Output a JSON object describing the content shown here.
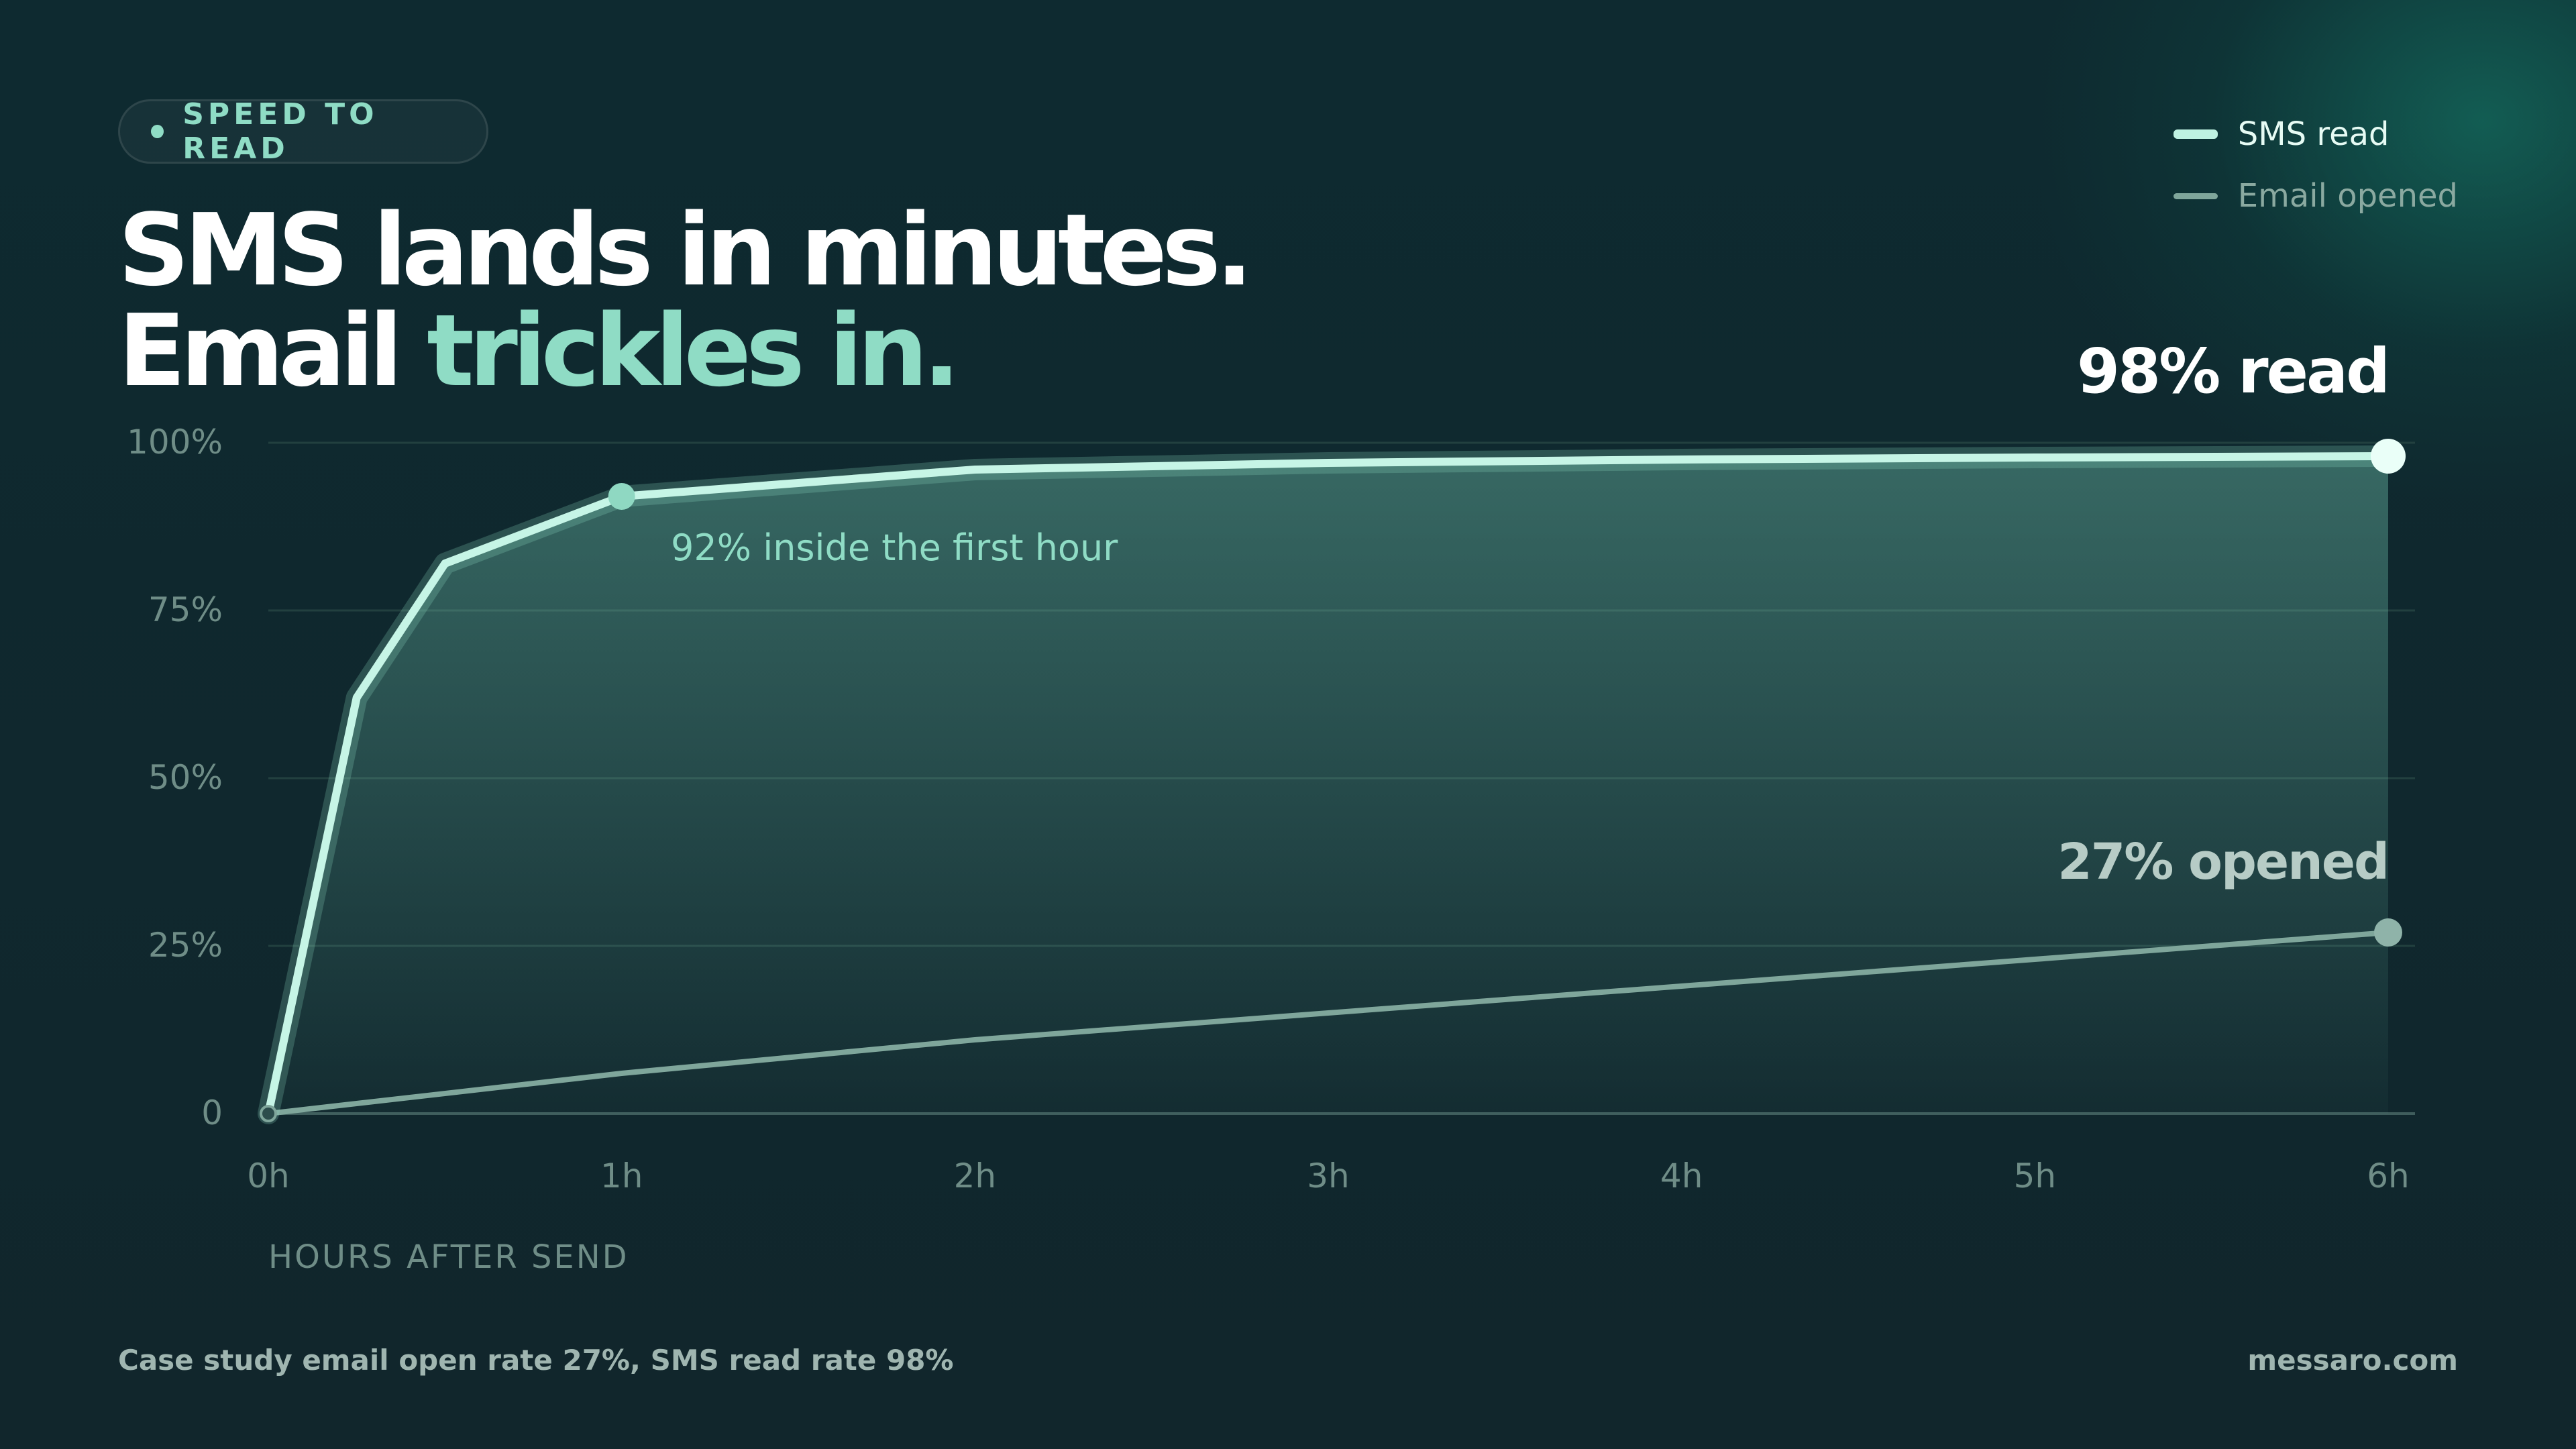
{
  "tag": {
    "label": "SPEED TO READ"
  },
  "headline": {
    "line1": "SMS lands in minutes.",
    "line2_plain": "Email ",
    "line2_accent": "trickles in."
  },
  "legend": {
    "sms_label": "SMS read",
    "email_label": "Email opened"
  },
  "footer": {
    "source": "Case study email open rate 27%, SMS read rate 98%",
    "brand": "messaro.com"
  },
  "colors": {
    "background": "#0f2a30",
    "accent": "#8fdcc5",
    "sms_line": "#c6f5e6",
    "email_line": "#7fa69b"
  },
  "chart_data": {
    "type": "line",
    "xlabel": "HOURS AFTER SEND",
    "ylabel": "",
    "xlim": [
      0,
      6
    ],
    "ylim": [
      0,
      100
    ],
    "x_ticks": [
      0,
      1,
      2,
      3,
      4,
      5,
      6
    ],
    "x_tick_labels": [
      "0h",
      "1h",
      "2h",
      "3h",
      "4h",
      "5h",
      "6h"
    ],
    "y_ticks": [
      0,
      25,
      50,
      75,
      100
    ],
    "y_tick_labels": [
      "0",
      "25%",
      "50%",
      "75%",
      "100%"
    ],
    "grid": true,
    "legend_position": "top-right",
    "series": [
      {
        "name": "SMS read",
        "x": [
          0,
          0.25,
          0.5,
          1,
          2,
          3,
          4,
          5,
          6
        ],
        "y": [
          0,
          62,
          82,
          92,
          96,
          97,
          97.5,
          97.8,
          98
        ],
        "area_fill": true
      },
      {
        "name": "Email opened",
        "x": [
          0,
          1,
          2,
          3,
          4,
          5,
          6
        ],
        "y": [
          0,
          6,
          11,
          15,
          19,
          23,
          27
        ]
      }
    ],
    "annotations": [
      {
        "series": 0,
        "x": 1,
        "y": 92,
        "text": "92% inside the first hour"
      },
      {
        "series": 0,
        "x": 6,
        "y": 98,
        "text": "98% read"
      },
      {
        "series": 1,
        "x": 6,
        "y": 27,
        "text": "27% opened"
      }
    ]
  }
}
